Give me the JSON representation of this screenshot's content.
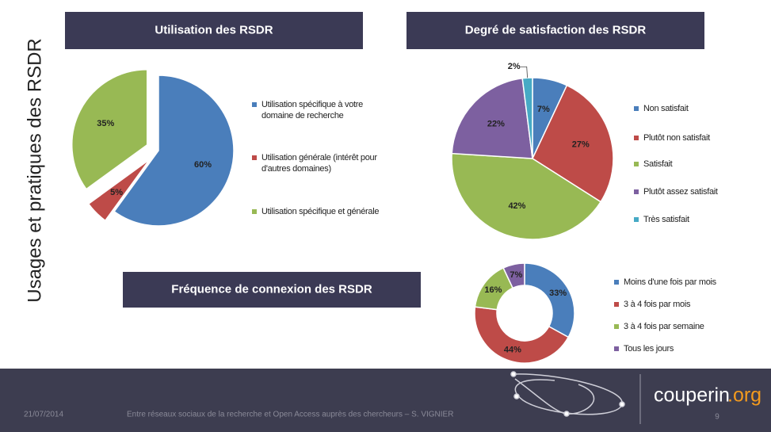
{
  "page": {
    "side_title": "Usages et pratiques des RSDR",
    "footer": {
      "date": "21/07/2014",
      "text": "Entre réseaux sociaux de la recherche et Open Access auprès des chercheurs – S. VIGNIER",
      "logo_main": "couperin",
      "logo_ext": ".org",
      "page_number": "9"
    }
  },
  "chart_data": [
    {
      "type": "pie",
      "title": "Utilisation des RSDR",
      "exploded": true,
      "categories": [
        "Utilisation spécifique à votre domaine de recherche",
        "Utilisation générale (intérêt pour d'autres domaines)",
        "Utilisation spécifique et générale"
      ],
      "values": [
        60,
        5,
        35
      ],
      "value_labels": [
        "60%",
        "5%",
        "35%"
      ],
      "colors": [
        "#4a7ebb",
        "#be4b48",
        "#98b954"
      ]
    },
    {
      "type": "pie",
      "title": "Degré de satisfaction des RSDR",
      "categories": [
        "Non satisfait",
        "Plutôt non satisfait",
        "Satisfait",
        "Plutôt assez satisfait",
        "Très satisfait"
      ],
      "values": [
        7,
        27,
        42,
        22,
        2
      ],
      "value_labels": [
        "7%",
        "27%",
        "42%",
        "22%",
        "2%"
      ],
      "colors": [
        "#4a7ebb",
        "#be4b48",
        "#98b954",
        "#7d60a0",
        "#46aac5"
      ]
    },
    {
      "type": "donut",
      "title": "Fréquence de connexion des RSDR",
      "categories": [
        "Moins d'une fois par mois",
        "3 à 4 fois par mois",
        "3 à 4 fois par semaine",
        "Tous les jours"
      ],
      "values": [
        33,
        44,
        16,
        7
      ],
      "value_labels": [
        "33%",
        "44%",
        "16%",
        "7%"
      ],
      "colors": [
        "#4a7ebb",
        "#be4b48",
        "#98b954",
        "#7d60a0"
      ]
    }
  ]
}
